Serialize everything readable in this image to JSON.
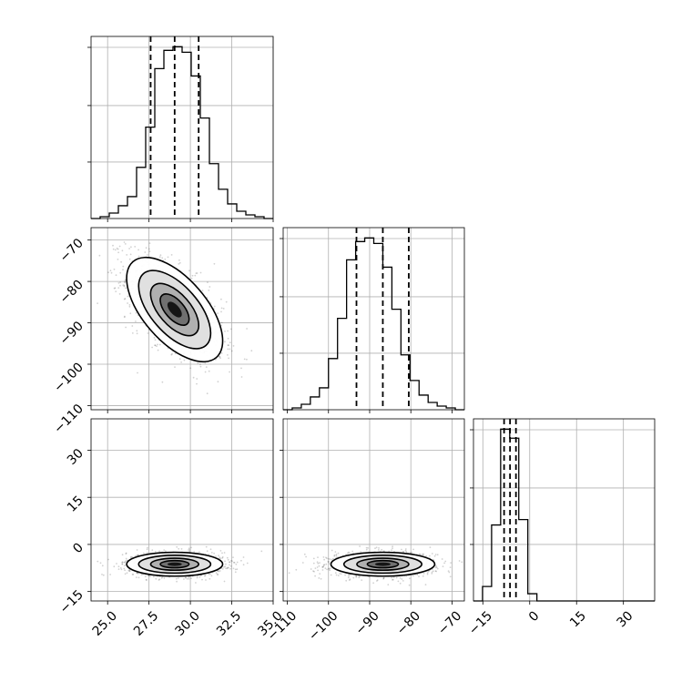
{
  "chart_data": {
    "type": "corner",
    "grid": true,
    "parameters": [
      {
        "id": "p1",
        "range": [
          24,
          35
        ],
        "ticks": [
          "25.0",
          "27.5",
          "30.0",
          "32.5",
          "35.0"
        ],
        "tick_values": [
          25,
          27.5,
          30,
          32.5,
          35
        ]
      },
      {
        "id": "p2",
        "range": [
          -111,
          -67
        ],
        "ticks": [
          "−110",
          "−100",
          "−90",
          "−80",
          "−70"
        ],
        "tick_values": [
          -110,
          -100,
          -90,
          -80,
          -70
        ]
      },
      {
        "id": "p3",
        "range": [
          -18,
          40
        ],
        "ticks": [
          "−15",
          "0",
          "15",
          "30"
        ],
        "tick_values": [
          -15,
          0,
          15,
          30
        ]
      }
    ],
    "quantiles": {
      "p1": [
        27.6,
        29.05,
        30.5
      ],
      "p2": [
        -93.2,
        -86.8,
        -80.5
      ],
      "p3": [
        -8.2,
        -6.3,
        -4.4
      ]
    },
    "histograms": {
      "p1": {
        "edges_start": 24,
        "bin_width": 0.55,
        "counts": [
          0,
          1,
          3,
          7,
          12,
          28,
          50,
          82,
          92,
          94,
          91,
          78,
          55,
          30,
          16,
          8,
          4,
          2,
          1,
          0
        ]
      },
      "p2": {
        "edges_start": -111,
        "bin_width": 2.2,
        "counts": [
          0,
          1,
          3,
          7,
          12,
          28,
          50,
          82,
          92,
          94,
          91,
          78,
          55,
          30,
          16,
          8,
          4,
          2,
          1,
          0
        ]
      },
      "p3": {
        "edges_start": -18,
        "bin_width": 2.9,
        "counts": [
          0,
          8,
          42,
          95,
          90,
          45,
          4,
          0,
          0,
          0,
          0,
          0,
          0,
          0,
          0,
          0,
          0,
          0,
          0,
          0
        ]
      }
    },
    "scatter_2d": [
      {
        "x_param": "p1",
        "y_param": "p2",
        "mean": [
          29.05,
          -86.8
        ],
        "sd": [
          1.45,
          6.3
        ],
        "corr": -0.6
      },
      {
        "x_param": "p1",
        "y_param": "p3",
        "mean": [
          29.05,
          -6.3
        ],
        "sd": [
          1.45,
          1.9
        ],
        "corr": 0.0
      },
      {
        "x_param": "p2",
        "y_param": "p3",
        "mean": [
          -86.8,
          -6.3
        ],
        "sd": [
          6.3,
          1.9
        ],
        "corr": 0.0
      }
    ]
  }
}
